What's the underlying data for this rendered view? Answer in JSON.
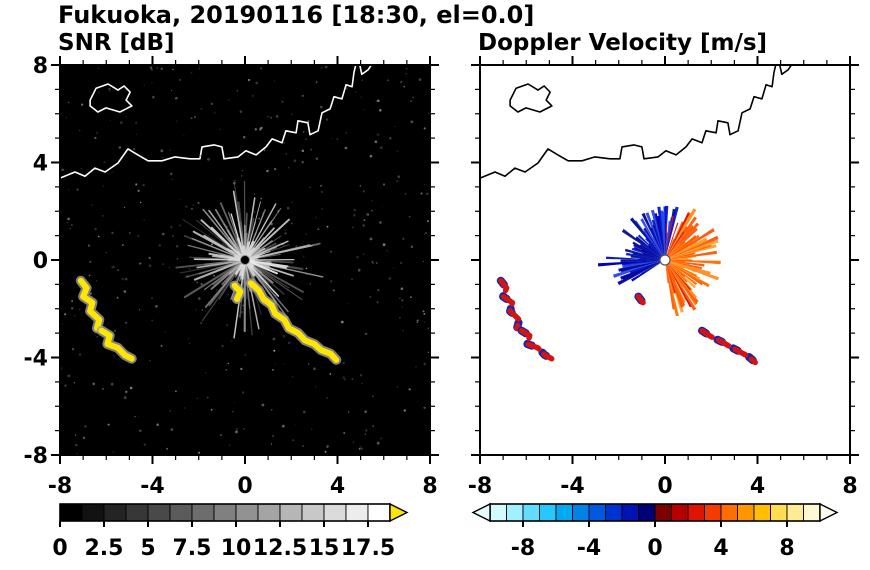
{
  "chart_data": {
    "type": "heatmap",
    "subtype": "doppler_radar_ppi_pair",
    "title": "Fukuoka, 20190116 [18:30, el=0.0]",
    "station": "Fukuoka",
    "date": "20190116",
    "time": "18:30",
    "elevation": "0.0",
    "axes": {
      "xlim": [
        -8,
        8
      ],
      "ylim": [
        -8,
        8
      ],
      "xticks": [
        -8,
        -4,
        0,
        4,
        8
      ],
      "yticks": [
        -8,
        -4,
        0,
        4,
        8
      ],
      "xtick_labels": [
        "-8",
        "-4",
        "0",
        "4",
        "8"
      ],
      "ytick_labels": [
        "8",
        "4",
        "0",
        "-4",
        "-8"
      ],
      "ytick_values": [
        8,
        4,
        0,
        -4,
        -8
      ],
      "minor_step": 1
    },
    "panels": [
      {
        "id": "snr",
        "title": "SNR [dB]",
        "background": "#000000",
        "coast_color": "#ffffff",
        "colorbar": {
          "range": [
            0,
            18.75
          ],
          "tick_values": [
            0,
            2.5,
            5,
            7.5,
            10,
            12.5,
            15,
            17.5
          ],
          "tick_labels": [
            "0",
            "2.5",
            "5",
            "7.5",
            "10",
            "12.5",
            "15",
            "17.5"
          ],
          "segments": [
            "#000000",
            "#121212",
            "#242424",
            "#373737",
            "#494949",
            "#5b5b5b",
            "#6d6d6d",
            "#808080",
            "#929292",
            "#a4a4a4",
            "#b6b6b6",
            "#c8c8c8",
            "#dbdbdb",
            "#ededed",
            "#ffffff"
          ],
          "over_color": "#ffe600",
          "under_color": "#000000",
          "arrow_left": false,
          "arrow_right": true
        }
      },
      {
        "id": "velocity",
        "title": "Doppler Velocity [m/s]",
        "background": "#ffffff",
        "coast_color": "#000000",
        "colorbar": {
          "range": [
            -10,
            10
          ],
          "tick_values": [
            -8,
            -4,
            0,
            4,
            8
          ],
          "tick_labels": [
            "-8",
            "-4",
            "0",
            "4",
            "8"
          ],
          "segments": [
            "#d2faff",
            "#a0f0ff",
            "#64dcff",
            "#28c8ff",
            "#00aaf0",
            "#0082e6",
            "#005ae0",
            "#0032d2",
            "#0014b4",
            "#000078",
            "#7d0000",
            "#b40000",
            "#dc1400",
            "#f53c00",
            "#ff6e00",
            "#ff9600",
            "#ffbe00",
            "#ffdc50",
            "#ffeb96",
            "#fff8d2"
          ],
          "over_color": "#fffdf0",
          "under_color": "#e6feff",
          "arrow_left": true,
          "arrow_right": true
        }
      }
    ],
    "coastline": [
      {
        "closed": false,
        "pts": [
          [
            -8,
            3.36
          ],
          [
            -7.35,
            3.61
          ],
          [
            -6.92,
            3.44
          ],
          [
            -6.49,
            3.77
          ],
          [
            -6.05,
            3.61
          ],
          [
            -5.49,
            3.98
          ],
          [
            -5.06,
            4.56
          ],
          [
            -4.63,
            4.31
          ],
          [
            -4.19,
            4.07
          ],
          [
            -3.59,
            4.07
          ],
          [
            -3.03,
            4.23
          ],
          [
            -2.38,
            4.15
          ],
          [
            -1.95,
            4.15
          ],
          [
            -1.86,
            4.64
          ],
          [
            -1.34,
            4.72
          ],
          [
            -1.0,
            4.64
          ],
          [
            -0.91,
            4.15
          ],
          [
            -0.3,
            4.23
          ],
          [
            0.04,
            4.48
          ],
          [
            0.48,
            4.31
          ],
          [
            0.91,
            4.64
          ],
          [
            1.17,
            4.97
          ],
          [
            1.6,
            4.81
          ],
          [
            1.77,
            5.3
          ],
          [
            2.21,
            5.22
          ],
          [
            2.29,
            5.71
          ],
          [
            2.72,
            5.63
          ],
          [
            2.81,
            5.14
          ],
          [
            3.16,
            5.3
          ],
          [
            3.33,
            6.04
          ],
          [
            3.68,
            6.2
          ],
          [
            3.85,
            6.7
          ],
          [
            4.19,
            6.61
          ],
          [
            4.37,
            7.19
          ],
          [
            4.63,
            7.11
          ],
          [
            4.71,
            7.68
          ],
          [
            4.8,
            8.05
          ]
        ]
      },
      {
        "closed": true,
        "pts": [
          [
            -6.7,
            6.56
          ],
          [
            -6.44,
            7.05
          ],
          [
            -5.92,
            7.22
          ],
          [
            -5.49,
            6.97
          ],
          [
            -5.23,
            7.14
          ],
          [
            -4.97,
            6.89
          ],
          [
            -5.14,
            6.56
          ],
          [
            -4.89,
            6.32
          ],
          [
            -5.41,
            6.07
          ],
          [
            -6.01,
            6.24
          ],
          [
            -6.36,
            6.07
          ],
          [
            -6.7,
            6.32
          ]
        ]
      },
      {
        "closed": false,
        "pts": [
          [
            4.95,
            8.05
          ],
          [
            5.05,
            7.62
          ],
          [
            5.32,
            7.8
          ],
          [
            5.5,
            8.05
          ]
        ]
      }
    ],
    "echoes": {
      "snr": [
        [
          [
            -7.1,
            -0.85
          ],
          [
            -6.85,
            -1.15
          ],
          [
            -7.0,
            -1.5
          ],
          [
            -6.6,
            -1.75
          ],
          [
            -6.7,
            -2.1
          ],
          [
            -6.3,
            -2.45
          ],
          [
            -6.4,
            -2.8
          ]
        ],
        [
          [
            -6.2,
            -2.9
          ],
          [
            -5.85,
            -3.1
          ],
          [
            -5.95,
            -3.45
          ],
          [
            -5.5,
            -3.6
          ],
          [
            -5.2,
            -3.9
          ],
          [
            -4.9,
            -4.05
          ]
        ],
        [
          [
            0.25,
            -0.95
          ],
          [
            0.6,
            -1.25
          ],
          [
            0.8,
            -1.6
          ],
          [
            1.15,
            -1.85
          ],
          [
            1.3,
            -2.2
          ],
          [
            1.7,
            -2.45
          ],
          [
            1.9,
            -2.8
          ],
          [
            2.3,
            -3.0
          ],
          [
            2.6,
            -3.3
          ],
          [
            3.0,
            -3.45
          ],
          [
            3.3,
            -3.7
          ],
          [
            3.7,
            -3.85
          ],
          [
            3.95,
            -4.1
          ]
        ],
        [
          [
            -0.45,
            -1.05
          ],
          [
            -0.2,
            -1.3
          ],
          [
            -0.35,
            -1.6
          ]
        ]
      ],
      "velocity_red": [
        [
          [
            -7.1,
            -0.85
          ],
          [
            -6.85,
            -1.15
          ],
          [
            -7.0,
            -1.5
          ],
          [
            -6.6,
            -1.75
          ],
          [
            -6.7,
            -2.1
          ],
          [
            -6.3,
            -2.45
          ],
          [
            -6.4,
            -2.8
          ]
        ],
        [
          [
            -6.2,
            -2.9
          ],
          [
            -5.85,
            -3.1
          ],
          [
            -5.95,
            -3.45
          ],
          [
            -5.5,
            -3.6
          ],
          [
            -5.2,
            -3.9
          ],
          [
            -4.9,
            -4.05
          ]
        ],
        [
          [
            1.6,
            -2.9
          ],
          [
            2.0,
            -3.15
          ],
          [
            2.45,
            -3.35
          ],
          [
            2.8,
            -3.55
          ],
          [
            3.2,
            -3.75
          ],
          [
            3.6,
            -3.95
          ],
          [
            3.9,
            -4.2
          ]
        ],
        [
          [
            -1.15,
            -1.5
          ],
          [
            -0.95,
            -1.75
          ]
        ]
      ],
      "colors": {
        "snr_fill": "#ffe600",
        "snr_fringe": "#a0a0a0",
        "vel_red": "#d21414",
        "vel_blue": "#0a28b4"
      }
    },
    "snr_field": {
      "seed": 20190116,
      "beam_count": 150,
      "bright_beam_count": 22,
      "speckle_count": 420,
      "center_dot": "#000000"
    },
    "velocity_fan": {
      "seed": 1830,
      "blue": {
        "start_deg": 76,
        "end_deg": 212,
        "min_r": 0.9,
        "max_r": 2.35,
        "colors": [
          "#0018d2",
          "#0000a8",
          "#2846e6",
          "#000e8c"
        ]
      },
      "orange": {
        "start_deg": -82,
        "end_deg": 72,
        "min_r": 0.8,
        "max_r": 2.5,
        "colors": [
          "#ff8c1e",
          "#ff6e00",
          "#ffa032",
          "#ff5500"
        ]
      },
      "red_spikes": [
        55,
        62,
        70,
        79,
        87,
        -48,
        -60,
        -72
      ],
      "blue_spike": {
        "deg": 184,
        "len": 2.9
      },
      "center_dot": "#ffffff"
    }
  }
}
